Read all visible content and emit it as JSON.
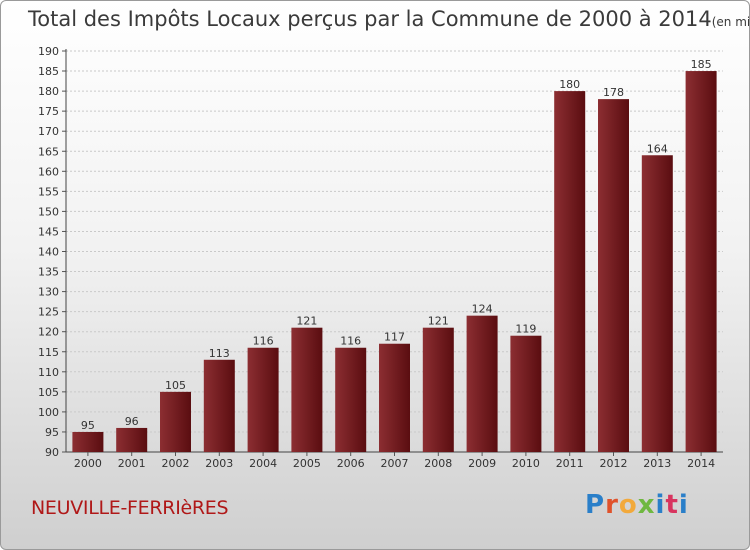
{
  "header": {
    "title": "Total des Impôts Locaux perçus par la Commune de 2000 à 2014",
    "unit": "(en milliers d'€)"
  },
  "footer": {
    "commune": "NEUVILLE-FERRIèRES",
    "brand_letters": [
      "P",
      "r",
      "o",
      "x",
      "i",
      "t",
      "i"
    ]
  },
  "colors": {
    "bar_light": "#8c2e32",
    "bar_dark": "#5a0d10",
    "brand_blue": "#2a7fc9",
    "commune_red": "#b01818"
  },
  "chart_data": {
    "type": "bar",
    "categories": [
      "2000",
      "2001",
      "2002",
      "2003",
      "2004",
      "2005",
      "2006",
      "2007",
      "2008",
      "2009",
      "2010",
      "2011",
      "2012",
      "2013",
      "2014"
    ],
    "values": [
      95,
      96,
      105,
      113,
      116,
      121,
      116,
      117,
      121,
      124,
      119,
      180,
      178,
      164,
      185
    ],
    "ylim": [
      90,
      190
    ],
    "yticks": [
      90,
      95,
      100,
      105,
      110,
      115,
      120,
      125,
      130,
      135,
      140,
      145,
      150,
      155,
      160,
      165,
      170,
      175,
      180,
      185,
      190
    ],
    "grid": true,
    "xlabel": "",
    "ylabel": ""
  }
}
